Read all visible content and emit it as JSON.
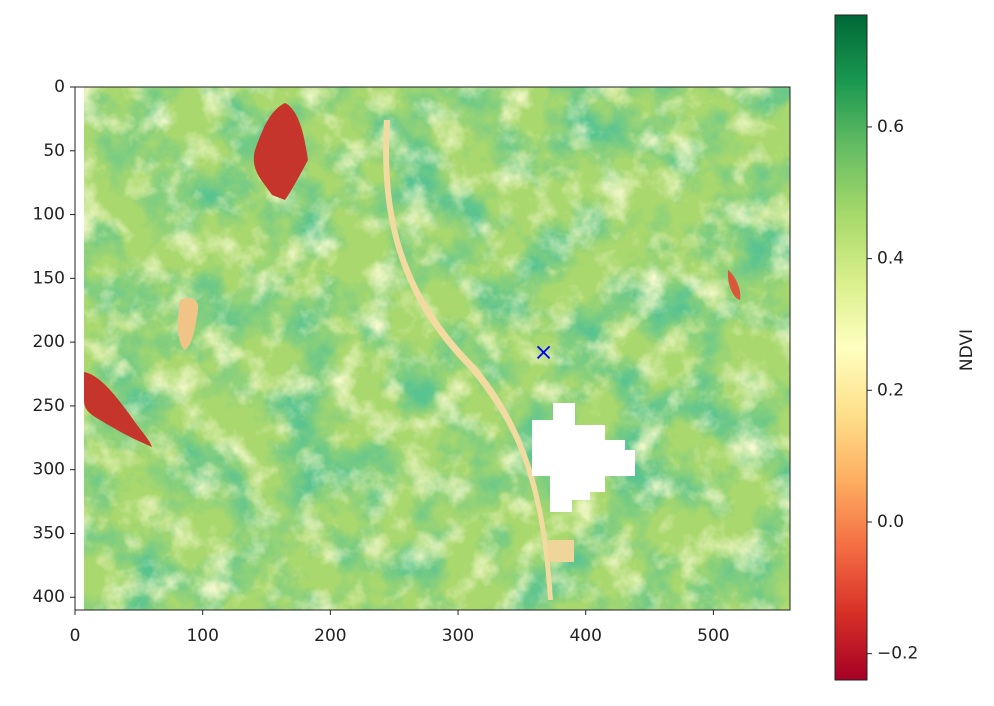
{
  "chart_data": {
    "type": "image",
    "xlim": [
      0,
      560
    ],
    "ylim": [
      410,
      0
    ],
    "xticks": [
      0,
      100,
      200,
      300,
      400,
      500
    ],
    "yticks": [
      0,
      50,
      100,
      150,
      200,
      250,
      300,
      350,
      400
    ],
    "cmap": "RdYlGn",
    "colorbar": {
      "label": "NDVI",
      "lim": [
        -0.24,
        0.77
      ],
      "ticks": [
        {
          "value": -0.2,
          "label": "−0.2"
        },
        {
          "value": 0,
          "label": "0.0"
        },
        0.2,
        0.4,
        0.6
      ]
    },
    "marker": {
      "x": 367,
      "y": 208,
      "color": "blue"
    }
  }
}
